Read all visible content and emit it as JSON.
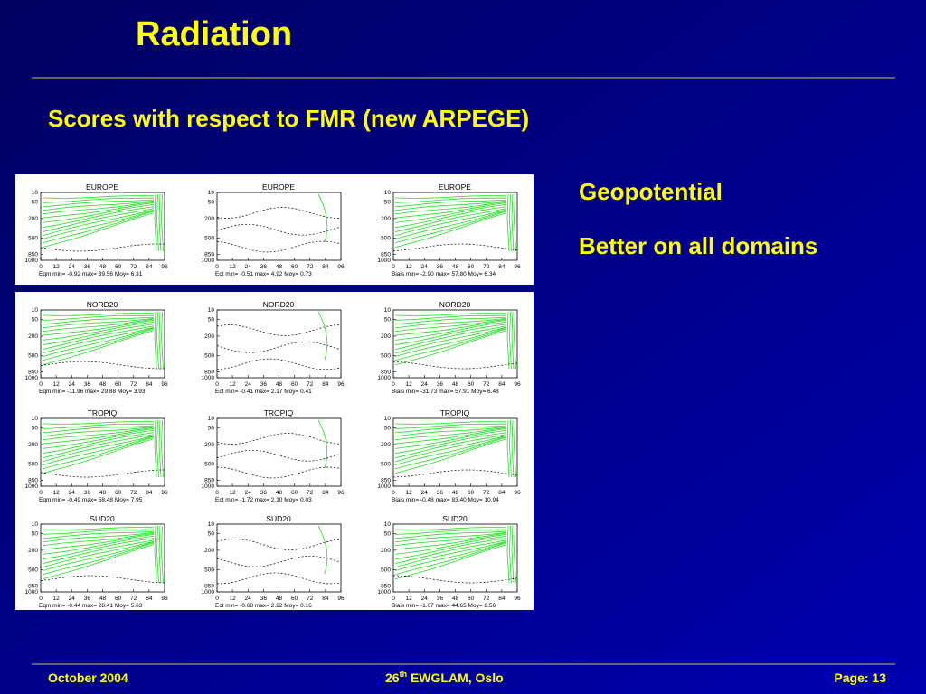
{
  "header": {
    "title": "Radiation",
    "subtitle": "Scores with respect to FMR (new ARPEGE)"
  },
  "notes": [
    "Geopotential",
    "Better on all domains"
  ],
  "axes": {
    "y_ticks": [
      10,
      50,
      200,
      500,
      850,
      1000
    ],
    "x_ticks": [
      0,
      12,
      24,
      36,
      48,
      60,
      72,
      84,
      96
    ]
  },
  "panels": [
    {
      "title": "EUROPE",
      "stats": "Eqm min= -0.92 max= 39.56 Moy= 6.31"
    },
    {
      "title": "EUROPE",
      "stats": "Ect min= -0.51 max= 4.92 Moy= 0.73"
    },
    {
      "title": "EUROPE",
      "stats": "Biais min= -2.90 max= 57.80 Moy= 6.34"
    },
    {
      "title": "NORD20",
      "stats": "Eqm min= -11.96 max= 29.88 Moy= 3.93"
    },
    {
      "title": "NORD20",
      "stats": "Ect min= -0.41 max= 2.17 Moy= 0.41"
    },
    {
      "title": "NORD20",
      "stats": "Biais min= -31.73 max= 57.91 Moy= 6.48"
    },
    {
      "title": "TROPIQ",
      "stats": "Eqm min= -0.49 max= 58.48 Moy= 7.95"
    },
    {
      "title": "TROPIQ",
      "stats": "Ect min= -1.72 max= 2.10 Moy= 0.03"
    },
    {
      "title": "TROPIQ",
      "stats": "Biais min= -0.48 max= 83.40 Moy= 10.94"
    },
    {
      "title": "SUD20",
      "stats": "Eqm min= -0.44 max= 28.41 Moy= 5.63"
    },
    {
      "title": "SUD20",
      "stats": "Ect min= -0.68 max= 2.22 Moy= 0.16"
    },
    {
      "title": "SUD20",
      "stats": "Biais min= -1.07 max= 44.65 Moy= 8.56"
    }
  ],
  "footer": {
    "date": "October 2004",
    "event_number": "26",
    "event_suffix": "th",
    "event_rest": " EWGLAM, Oslo",
    "page": "Page: 13"
  }
}
